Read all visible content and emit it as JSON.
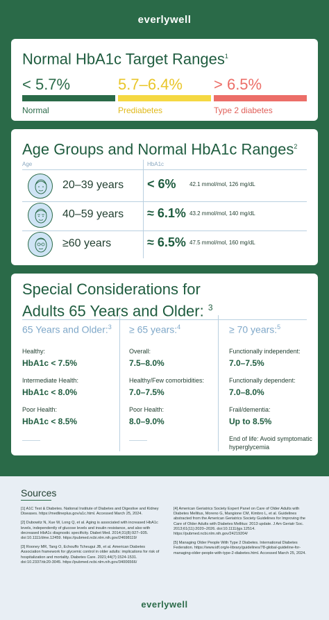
{
  "brand": "everlywell",
  "card1": {
    "title": "Normal HbA1c Target Ranges",
    "sup": "1",
    "ranges": [
      {
        "value": "< 5.7%",
        "label": "Normal",
        "color": "#2a6a48"
      },
      {
        "value": "5.7–6.4%",
        "label": "Prediabetes",
        "color": "#f5d842"
      },
      {
        "value": "> 6.5%",
        "label": "Type 2 diabetes",
        "color": "#ec6e68"
      }
    ]
  },
  "card2": {
    "title": "Age Groups and Normal HbA1c Ranges",
    "sup": "2",
    "col_age": "Age",
    "col_a1c": "HbA1c",
    "rows": [
      {
        "age": "20–39 years",
        "a1c": "< 6%",
        "detail": "42.1 mmol/mol, 126 mg/dL",
        "icon": "face-young-icon"
      },
      {
        "age": "40–59 years",
        "a1c": "≈ 6.1%",
        "detail": "43.2 mmol/mol, 140 mg/dL",
        "icon": "face-middle-icon"
      },
      {
        "age": "≥60 years",
        "a1c": "≈ 6.5%",
        "detail": "47.5 mmol/mol, 160 mg/dL",
        "icon": "face-older-icon"
      }
    ]
  },
  "card3": {
    "title_line1": "Special Considerations for",
    "title_line2": "Adults 65 Years and Older:",
    "sup": "3",
    "columns": [
      {
        "header": "65 Years and Older:",
        "sup": "3",
        "items": [
          {
            "k": "Healthy:",
            "v": "HbA1c < 7.5%"
          },
          {
            "k": "Intermediate Health:",
            "v": "HbA1c < 8.0%"
          },
          {
            "k": "Poor Health:",
            "v": "HbA1c < 8.5%"
          }
        ]
      },
      {
        "header": "≥ 65 years:",
        "sup": "4",
        "items": [
          {
            "k": "Overall:",
            "v": "7.5–8.0%"
          },
          {
            "k": "Healthy/Few comorbidities:",
            "v": "7.0–7.5%"
          },
          {
            "k": "Poor Health:",
            "v": "8.0–9.0%"
          }
        ]
      },
      {
        "header": "≥ 70 years:",
        "sup": "5",
        "items": [
          {
            "k": "Functionally independent:",
            "v": "7.0–7.5%"
          },
          {
            "k": "Functionally dependent:",
            "v": "7.0–8.0%"
          },
          {
            "k": "Frail/dementia:",
            "v": "Up to 8.5%"
          }
        ],
        "footer": "End of life: Avoid symptomatic hyperglycemia"
      }
    ]
  },
  "sources": {
    "title": "Sources",
    "left": [
      "[1] A1C Test & Diabetes. National Institute of Diabetes and Digestive and Kidney Diseases. https://medlineplus.gov/a1c.html. Accessed March 25, 2024.",
      "[2] Dubowitz N, Xue W, Long Q, et al. Aging is associated with increased HbA1c levels, independently of glucose levels and insulin resistance, and also with decreased HbA1c diagnostic specificity. Diabet Med. 2014;31(8):927–935. doi:10.1111/dme.12459. https://pubmed.ncbi.nlm.nih.gov/24698119/",
      "[3] Rooney MR, Tang O, Echouffo Tcheugui JB, et al. American Diabetes Association framework for glycemic control in older adults: implications for risk of hospitalization and mortality. Diabetes Care. 2021;44(7):1524-1531. doi:10.2337/dc20-3045. https://pubmed.ncbi.nlm.nih.gov/34006566/"
    ],
    "right": [
      "[4] American Geriatrics Society Expert Panel on Care of Older Adults with Diabetes Mellitus, Moreno G, Mangione CM, Kimbro L, et al. Guidelines abstracted from the American Geriatrics Society Guidelines for Improving the Care of Older Adults with Diabetes Mellitus: 2013 update. J Am Geriatr Soc. 2013;61(11):2020–2026. doi:10.1111/jgs.12514. https://pubmed.ncbi.nlm.nih.gov/24219204/",
      "[5] Managing Older People With Type 2 Diabetes. International Diabetes Federation. https://www.idf.org/e-library/guidelines/78-global-guideline-for-managing-older-people-with-type-2-diabetes.html. Accessed March 25, 2024."
    ]
  }
}
